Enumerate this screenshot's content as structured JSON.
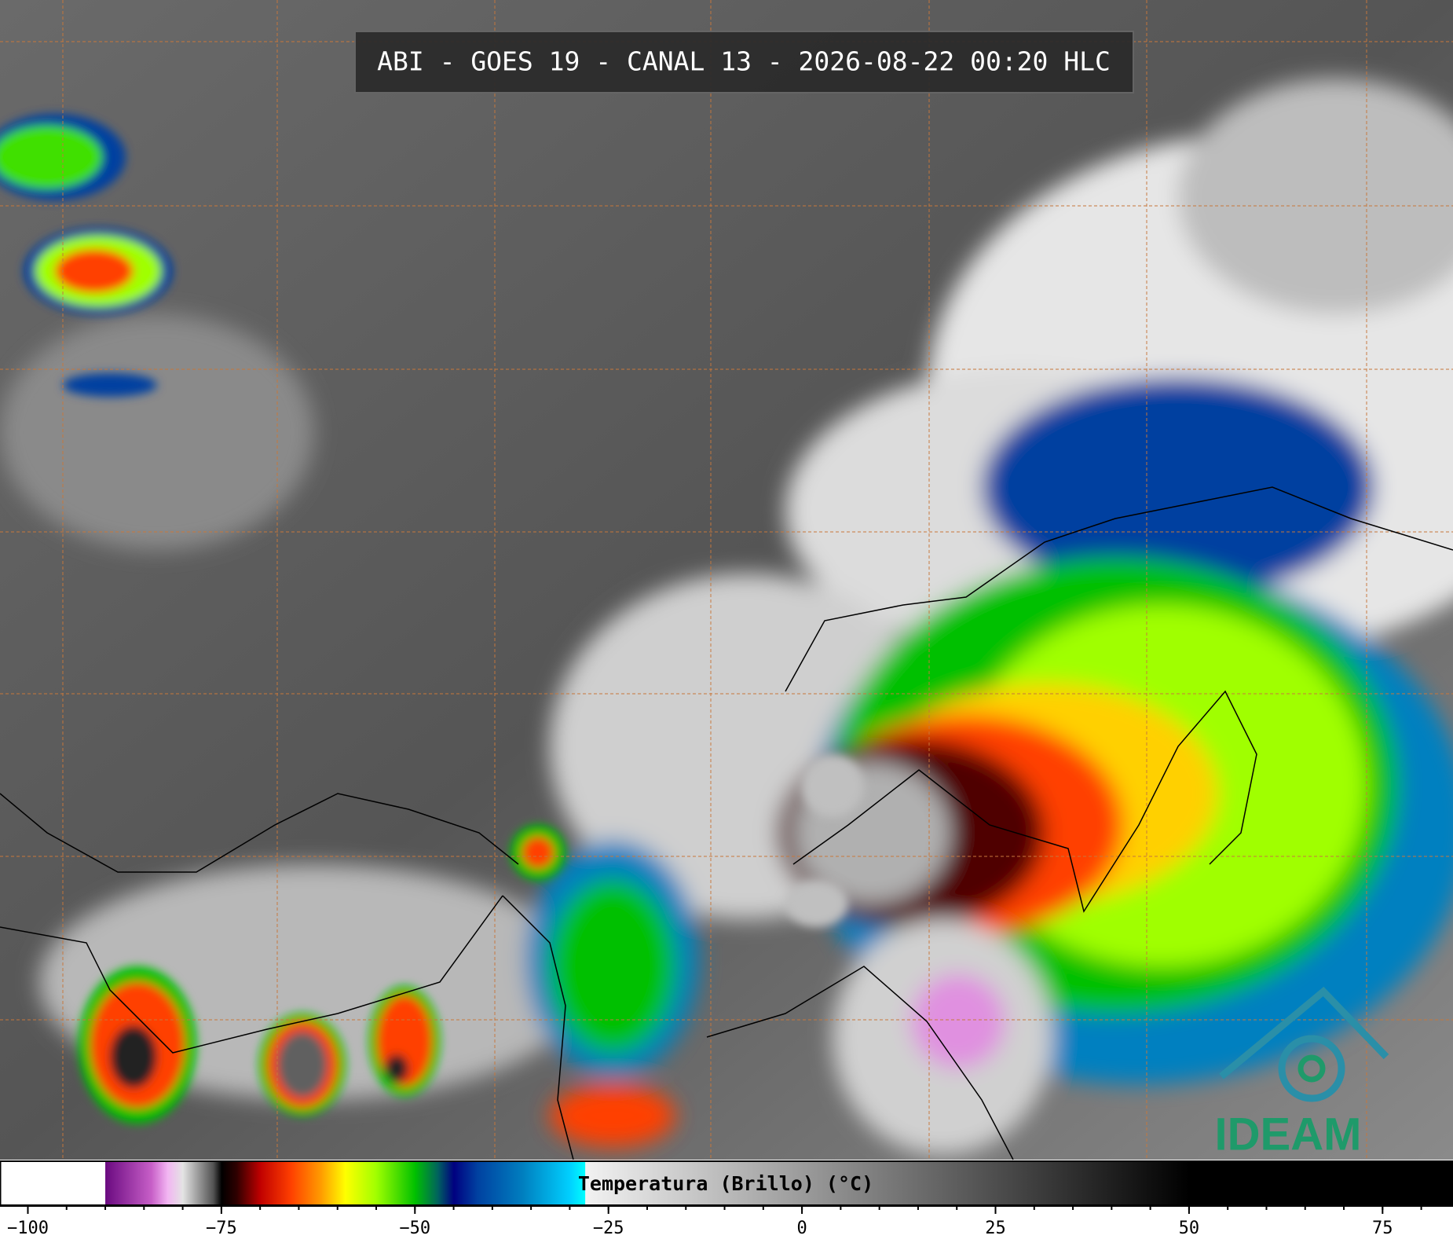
{
  "header": {
    "title": "ABI - GOES 19 - CANAL 13 - 2026-08-22 00:20 HLC"
  },
  "logo": {
    "text": "IDEAM"
  },
  "colorbar": {
    "label": "Temperatura (Brillo) (°C)",
    "lim": [
      -103.6,
      84.1
    ],
    "ticks": [
      {
        "value": -100,
        "label": "−100"
      },
      {
        "value": -75,
        "label": "−75"
      },
      {
        "value": -50,
        "label": "−50"
      },
      {
        "value": -25,
        "label": "−25"
      },
      0,
      25,
      50,
      75
    ],
    "minor_ticks": [
      -100,
      -95,
      -90,
      -85,
      -80,
      -75,
      -70,
      -65,
      -60,
      -55,
      -50,
      -45,
      -40,
      -35,
      -30,
      -25,
      -20,
      -15,
      -10,
      -5,
      0,
      5,
      10,
      15,
      20,
      25,
      30,
      35,
      40,
      45,
      50,
      55,
      60,
      65,
      70,
      75,
      80
    ],
    "stops": [
      {
        "value": -103.6,
        "color": "#ffffff"
      },
      {
        "value": -90,
        "color": "#ffffff"
      },
      {
        "value": -90,
        "color": "#6a0a80"
      },
      {
        "value": -84,
        "color": "#c860c8"
      },
      {
        "value": -82,
        "color": "#f2b4f2"
      },
      {
        "value": -80,
        "color": "#e4e4e4"
      },
      {
        "value": -76,
        "color": "#505050"
      },
      {
        "value": -75,
        "color": "#000000"
      },
      {
        "value": -73,
        "color": "#300000"
      },
      {
        "value": -70,
        "color": "#c00000"
      },
      {
        "value": -66,
        "color": "#ff4000"
      },
      {
        "value": -62,
        "color": "#ffa000"
      },
      {
        "value": -59,
        "color": "#ffff00"
      },
      {
        "value": -55,
        "color": "#a0ff00"
      },
      {
        "value": -50,
        "color": "#00c000"
      },
      {
        "value": -47,
        "color": "#006060"
      },
      {
        "value": -45,
        "color": "#000080"
      },
      {
        "value": -42,
        "color": "#0040a0"
      },
      {
        "value": -36,
        "color": "#0080c0"
      },
      {
        "value": -30,
        "color": "#00d0ff"
      },
      {
        "value": -28,
        "color": "#00ffff"
      },
      {
        "value": -28,
        "color": "#f2f2f2"
      },
      {
        "value": 50,
        "color": "#000000"
      },
      {
        "value": 84.1,
        "color": "#000000"
      }
    ]
  }
}
